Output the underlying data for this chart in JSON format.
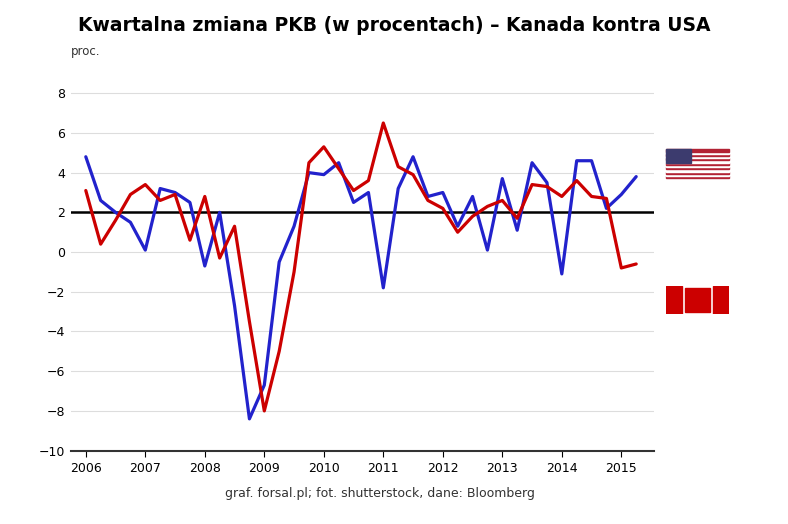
{
  "title": "Kwartalna zmiana PKB (w procentach) – Kanada kontra USA",
  "ylabel": "proc.",
  "xlabel_years": [
    2006,
    2007,
    2008,
    2009,
    2010,
    2011,
    2012,
    2013,
    2014,
    2015
  ],
  "ylim": [
    -10,
    9
  ],
  "yticks": [
    -10,
    -8,
    -6,
    -4,
    -2,
    0,
    2,
    4,
    6,
    8
  ],
  "hline_y": 2.0,
  "footer_text": "graf. forsal.pl; fot. shutterstock, dane: Bloomberg",
  "forsal_color": "#8B1A1A",
  "canada_color": "#CC0000",
  "usa_color": "#2222CC",
  "line_width": 2.3,
  "bg_color": "#ffffff",
  "grid_color": "#dddddd",
  "usa_data": {
    "x": [
      2006.0,
      2006.25,
      2006.5,
      2006.75,
      2007.0,
      2007.25,
      2007.5,
      2007.75,
      2008.0,
      2008.25,
      2008.5,
      2008.75,
      2009.0,
      2009.25,
      2009.5,
      2009.75,
      2010.0,
      2010.25,
      2010.5,
      2010.75,
      2011.0,
      2011.25,
      2011.5,
      2011.75,
      2012.0,
      2012.25,
      2012.5,
      2012.75,
      2013.0,
      2013.25,
      2013.5,
      2013.75,
      2014.0,
      2014.25,
      2014.5,
      2014.75,
      2015.0,
      2015.25
    ],
    "y": [
      4.8,
      2.6,
      2.0,
      1.5,
      0.1,
      3.2,
      3.0,
      2.5,
      -0.7,
      2.0,
      -2.7,
      -8.4,
      -6.7,
      -0.5,
      1.3,
      4.0,
      3.9,
      4.5,
      2.5,
      3.0,
      -1.8,
      3.2,
      4.8,
      2.8,
      3.0,
      1.3,
      2.8,
      0.1,
      3.7,
      1.1,
      4.5,
      3.5,
      -1.1,
      4.6,
      4.6,
      2.2,
      2.9,
      3.8
    ]
  },
  "canada_data": {
    "x": [
      2006.0,
      2006.25,
      2006.5,
      2006.75,
      2007.0,
      2007.25,
      2007.5,
      2007.75,
      2008.0,
      2008.25,
      2008.5,
      2008.75,
      2009.0,
      2009.25,
      2009.5,
      2009.75,
      2010.0,
      2010.25,
      2010.5,
      2010.75,
      2011.0,
      2011.25,
      2011.5,
      2011.75,
      2012.0,
      2012.25,
      2012.5,
      2012.75,
      2013.0,
      2013.25,
      2013.5,
      2013.75,
      2014.0,
      2014.25,
      2014.5,
      2014.75,
      2015.0,
      2015.25
    ],
    "y": [
      3.1,
      0.4,
      1.6,
      2.9,
      3.4,
      2.6,
      2.9,
      0.6,
      2.8,
      -0.3,
      1.3,
      -3.5,
      -8.0,
      -5.0,
      -1.0,
      4.5,
      5.3,
      4.2,
      3.1,
      3.6,
      6.5,
      4.3,
      3.9,
      2.6,
      2.2,
      1.0,
      1.8,
      2.3,
      2.6,
      1.7,
      3.4,
      3.3,
      2.8,
      3.6,
      2.8,
      2.7,
      -0.8,
      -0.6
    ]
  }
}
